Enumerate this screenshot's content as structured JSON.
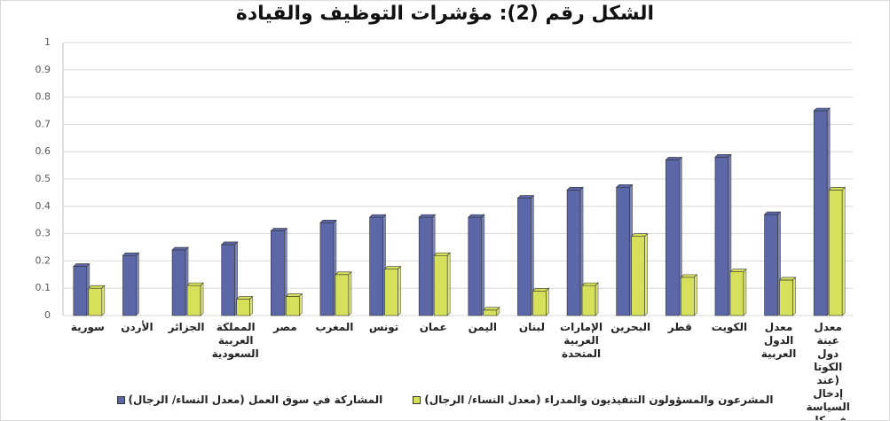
{
  "chart_data": {
    "type": "bar",
    "title": "الشكل رقم (2): مؤشرات التوظيف والقيادة",
    "categories": [
      "سورية",
      "الأردن",
      "الجزائر",
      "المملكة العربية السعودية",
      "مصر",
      "المغرب",
      "تونس",
      "عمان",
      "اليمن",
      "لبنان",
      "الإمارات العربية المتحدة",
      "البحرين",
      "قطر",
      "الكويت",
      "معدل الدول العربية",
      "معدل عينة دول الكوتا (عند إدخال السياسة في كل منها)"
    ],
    "series": [
      {
        "name": "المشاركة في سوق العمل (معدل النساء/ الرجال)",
        "color": "#5b67a6",
        "values": [
          0.18,
          0.22,
          0.24,
          0.26,
          0.31,
          0.34,
          0.36,
          0.36,
          0.36,
          0.43,
          0.46,
          0.47,
          0.57,
          0.58,
          0.37,
          0.75
        ]
      },
      {
        "name": "المشرعون والمسؤولون التنفيذيون والمدراء (معدل النساء/ الرجال)",
        "color": "#d6e05a",
        "values": [
          0.1,
          null,
          0.11,
          0.06,
          0.07,
          0.15,
          0.17,
          0.22,
          0.02,
          0.09,
          0.11,
          0.29,
          0.14,
          0.16,
          0.13,
          0.46
        ]
      }
    ],
    "ylim": [
      0,
      1
    ],
    "yticks": [
      0,
      0.1,
      0.2,
      0.3,
      0.4,
      0.5,
      0.6,
      0.7,
      0.8,
      0.9,
      1
    ],
    "grid": true
  }
}
